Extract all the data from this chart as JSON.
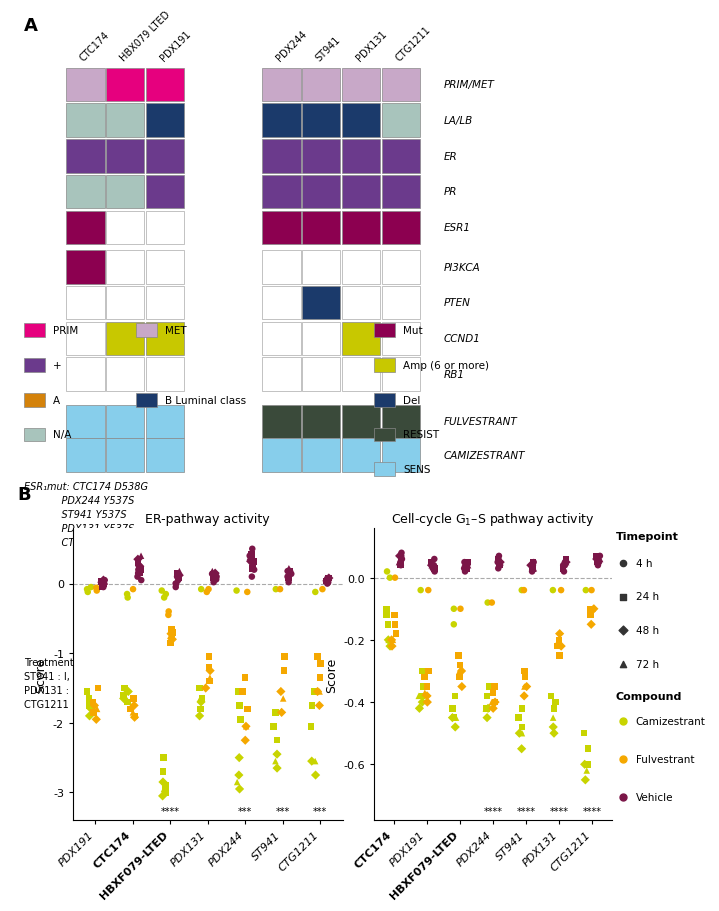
{
  "panel_A": {
    "group1_cols": [
      "CTC174",
      "HBX079 LTED",
      "PDX191"
    ],
    "group2_cols": [
      "PDX244",
      "ST941",
      "PDX131",
      "CTG1211"
    ],
    "rows": [
      "PRIM/MET",
      "LA/LB",
      "ER",
      "PR",
      "ESR1",
      "PI3KCA",
      "PTEN",
      "CCND1",
      "RB1",
      "FULVESTRANT",
      "CAMIZESTRANT"
    ],
    "grid": {
      "CTC174": {
        "PRIM/MET": "#C8A8C8",
        "LA/LB": "#A8C4BC",
        "ER": "#6B3A8C",
        "PR": "#A8C4BC",
        "ESR1": "#8C0050",
        "PI3KCA": "#8C0050",
        "PTEN": "#FFFFFF",
        "CCND1": "#FFFFFF",
        "RB1": "#FFFFFF",
        "FULVESTRANT": "#87CEEB",
        "CAMIZESTRANT": "#87CEEB"
      },
      "HBX079 LTED": {
        "PRIM/MET": "#E6007E",
        "LA/LB": "#A8C4BC",
        "ER": "#6B3A8C",
        "PR": "#A8C4BC",
        "ESR1": "#FFFFFF",
        "PI3KCA": "#FFFFFF",
        "PTEN": "#FFFFFF",
        "CCND1": "#C8C800",
        "RB1": "#FFFFFF",
        "FULVESTRANT": "#87CEEB",
        "CAMIZESTRANT": "#87CEEB"
      },
      "PDX191": {
        "PRIM/MET": "#E6007E",
        "LA/LB": "#1B3A6B",
        "ER": "#6B3A8C",
        "PR": "#6B3A8C",
        "ESR1": "#FFFFFF",
        "PI3KCA": "#FFFFFF",
        "PTEN": "#FFFFFF",
        "CCND1": "#C8C800",
        "RB1": "#FFFFFF",
        "FULVESTRANT": "#87CEEB",
        "CAMIZESTRANT": "#87CEEB"
      },
      "PDX244": {
        "PRIM/MET": "#C8A8C8",
        "LA/LB": "#1B3A6B",
        "ER": "#6B3A8C",
        "PR": "#6B3A8C",
        "ESR1": "#8C0050",
        "PI3KCA": "#FFFFFF",
        "PTEN": "#FFFFFF",
        "CCND1": "#FFFFFF",
        "RB1": "#FFFFFF",
        "FULVESTRANT": "#3A4A3A",
        "CAMIZESTRANT": "#87CEEB"
      },
      "ST941": {
        "PRIM/MET": "#C8A8C8",
        "LA/LB": "#1B3A6B",
        "ER": "#6B3A8C",
        "PR": "#6B3A8C",
        "ESR1": "#8C0050",
        "PI3KCA": "#FFFFFF",
        "PTEN": "#1B3A6B",
        "CCND1": "#FFFFFF",
        "RB1": "#FFFFFF",
        "FULVESTRANT": "#3A4A3A",
        "CAMIZESTRANT": "#87CEEB"
      },
      "PDX131": {
        "PRIM/MET": "#C8A8C8",
        "LA/LB": "#1B3A6B",
        "ER": "#6B3A8C",
        "PR": "#6B3A8C",
        "ESR1": "#8C0050",
        "PI3KCA": "#FFFFFF",
        "PTEN": "#FFFFFF",
        "CCND1": "#C8C800",
        "RB1": "#FFFFFF",
        "FULVESTRANT": "#3A4A3A",
        "CAMIZESTRANT": "#87CEEB"
      },
      "CTG1211": {
        "PRIM/MET": "#C8A8C8",
        "LA/LB": "#A8C4BC",
        "ER": "#6B3A8C",
        "PR": "#6B3A8C",
        "ESR1": "#8C0050",
        "PI3KCA": "#FFFFFF",
        "PTEN": "#FFFFFF",
        "CCND1": "#FFFFFF",
        "RB1": "#FFFFFF",
        "FULVESTRANT": "#3A4A3A",
        "CAMIZESTRANT": "#87CEEB"
      }
    }
  },
  "panel_B_left": {
    "title": "ER-pathway activity",
    "ylabel": "Score",
    "ylim": [
      -3.4,
      0.8
    ],
    "yticks": [
      -3,
      -2,
      -1,
      0
    ],
    "models": [
      "PDX191",
      "CTC174",
      "HBXF079-LTED",
      "PDX131",
      "PDX244",
      "ST941",
      "CTG1211"
    ],
    "bold_models": [
      "CTC174",
      "HBXF079-LTED"
    ],
    "significance": {
      "HBXF079-LTED": "****",
      "PDX244": "***",
      "ST941": "***",
      "CTG1211": "***"
    },
    "data": {
      "PDX191": {
        "Camizestrant": {
          "4h": [
            -0.05,
            -0.12,
            -0.08
          ],
          "24h": [
            -1.55,
            -1.65,
            -1.75
          ],
          "48h": [
            -1.8,
            -1.9
          ],
          "72h": [
            -1.7
          ]
        },
        "Fulvestrant": {
          "4h": [
            -0.06,
            -0.1
          ],
          "24h": [
            -1.5,
            -1.7,
            -1.85
          ],
          "48h": [
            -1.75,
            -1.95
          ],
          "72h": [
            -1.8
          ]
        },
        "Vehicle": {
          "4h": [
            0.0,
            0.05,
            -0.05,
            0.02
          ],
          "24h": [
            0.0,
            -0.05,
            0.03
          ],
          "48h": [
            0.02,
            0.05
          ],
          "72h": [
            0.03
          ]
        }
      },
      "CTC174": {
        "Camizestrant": {
          "4h": [
            -0.15,
            -0.2
          ],
          "24h": [
            -1.5,
            -1.6,
            -1.7
          ],
          "48h": [
            -1.55,
            -1.65
          ],
          "72h": [
            -1.5
          ]
        },
        "Fulvestrant": {
          "4h": [
            -0.08
          ],
          "24h": [
            -1.65,
            -1.8,
            -1.9
          ],
          "48h": [
            -1.75,
            -1.92
          ],
          "72h": [
            -1.85
          ]
        },
        "Vehicle": {
          "4h": [
            0.05,
            0.1,
            0.15,
            0.2,
            0.25
          ],
          "24h": [
            0.15,
            0.2,
            0.3
          ],
          "48h": [
            0.25,
            0.35
          ],
          "72h": [
            0.4
          ]
        }
      },
      "HBXF079-LTED": {
        "Camizestrant": {
          "4h": [
            -0.15,
            -0.2,
            -0.1
          ],
          "24h": [
            -2.5,
            -2.7,
            -2.9,
            -3.0
          ],
          "48h": [
            -2.85,
            -3.05
          ],
          "72h": [
            -2.95
          ]
        },
        "Fulvestrant": {
          "4h": [
            -0.4,
            -0.45
          ],
          "24h": [
            -0.65,
            -0.75,
            -0.85,
            -0.7
          ],
          "48h": [
            -0.72,
            -0.8
          ],
          "72h": [
            -0.75
          ]
        },
        "Vehicle": {
          "4h": [
            0.0,
            0.05,
            0.1,
            0.0,
            -0.05
          ],
          "24h": [
            0.08,
            0.15
          ],
          "48h": [
            0.12
          ],
          "72h": [
            0.18
          ]
        }
      },
      "PDX131": {
        "Camizestrant": {
          "4h": [
            -0.08
          ],
          "24h": [
            -1.5,
            -1.65,
            -1.8
          ],
          "48h": [
            -1.7,
            -1.9
          ],
          "72h": [
            -1.65
          ]
        },
        "Fulvestrant": {
          "4h": [
            -0.08,
            -0.12
          ],
          "24h": [
            -1.05,
            -1.2,
            -1.4
          ],
          "48h": [
            -1.25,
            -1.5
          ],
          "72h": [
            -1.35
          ]
        },
        "Vehicle": {
          "4h": [
            0.02,
            0.06,
            0.1,
            0.14
          ],
          "24h": [
            0.08,
            0.14
          ],
          "48h": [
            0.15
          ],
          "72h": [
            0.18
          ]
        }
      },
      "PDX244": {
        "Camizestrant": {
          "4h": [
            -0.1
          ],
          "24h": [
            -1.55,
            -1.75,
            -1.95
          ],
          "48h": [
            -2.5,
            -2.75,
            -2.95
          ],
          "72h": [
            -2.85
          ]
        },
        "Fulvestrant": {
          "4h": [
            -0.12
          ],
          "24h": [
            -1.35,
            -1.55,
            -1.8
          ],
          "48h": [
            -2.05,
            -2.25
          ],
          "72h": [
            -2.05
          ]
        },
        "Vehicle": {
          "4h": [
            0.1,
            0.2,
            0.3,
            0.4,
            0.5
          ],
          "24h": [
            0.22,
            0.32,
            0.42
          ],
          "48h": [
            0.32
          ],
          "72h": [
            0.38
          ]
        }
      },
      "ST941": {
        "Camizestrant": {
          "4h": [
            -0.08
          ],
          "24h": [
            -1.85,
            -2.05,
            -2.25
          ],
          "48h": [
            -2.45,
            -2.65
          ],
          "72h": [
            -2.55
          ]
        },
        "Fulvestrant": {
          "4h": [
            -0.08
          ],
          "24h": [
            -1.05,
            -1.25
          ],
          "48h": [
            -1.55,
            -1.85
          ],
          "72h": [
            -1.65
          ]
        },
        "Vehicle": {
          "4h": [
            0.02,
            0.1,
            0.18,
            0.14
          ],
          "24h": [
            0.08,
            0.18
          ],
          "48h": [
            0.18
          ],
          "72h": [
            0.22
          ]
        }
      },
      "CTG1211": {
        "Camizestrant": {
          "4h": [
            -0.12
          ],
          "24h": [
            -1.55,
            -1.75,
            -2.05
          ],
          "48h": [
            -2.55,
            -2.75
          ],
          "72h": [
            -2.55
          ]
        },
        "Fulvestrant": {
          "4h": [
            -0.08
          ],
          "24h": [
            -1.05,
            -1.15,
            -1.35
          ],
          "48h": [
            -1.55,
            -1.75
          ],
          "72h": [
            -1.55
          ]
        },
        "Vehicle": {
          "4h": [
            0.0,
            0.04,
            0.08,
            0.02
          ],
          "24h": [
            0.04,
            0.08
          ],
          "48h": [
            0.08
          ],
          "72h": [
            0.08
          ]
        }
      }
    }
  },
  "panel_B_right": {
    "title": "Cell-cycle G$_1$–S pathway activity",
    "ylabel": "Score",
    "ylim": [
      -0.78,
      0.16
    ],
    "yticks": [
      -0.6,
      -0.4,
      -0.2,
      0.0
    ],
    "models": [
      "CTC174",
      "PDX191",
      "HBXF079-LTED",
      "PDX244",
      "ST941",
      "PDX131",
      "CTG1211"
    ],
    "bold_models": [
      "CTC174",
      "HBXF079-LTED"
    ],
    "significance": {
      "PDX244": "****",
      "ST941": "****",
      "PDX131": "****",
      "CTG1211": "****"
    },
    "data": {
      "CTC174": {
        "Camizestrant": {
          "4h": [
            0.0,
            0.02
          ],
          "24h": [
            -0.1,
            -0.12,
            -0.15
          ],
          "48h": [
            -0.2,
            -0.22
          ],
          "72h": [
            -0.2
          ]
        },
        "Fulvestrant": {
          "4h": [
            0.0
          ],
          "24h": [
            -0.12,
            -0.15,
            -0.18
          ],
          "48h": [
            -0.2,
            -0.22
          ],
          "72h": [
            -0.2
          ]
        },
        "Vehicle": {
          "4h": [
            0.05,
            0.07,
            0.08,
            0.06,
            0.04
          ],
          "24h": [
            0.04,
            0.06
          ],
          "48h": [
            0.07
          ],
          "72h": [
            0.05
          ]
        }
      },
      "PDX191": {
        "Camizestrant": {
          "4h": [
            -0.04
          ],
          "24h": [
            -0.3,
            -0.35,
            -0.38
          ],
          "48h": [
            -0.4,
            -0.42
          ],
          "72h": [
            -0.38
          ]
        },
        "Fulvestrant": {
          "4h": [
            -0.04
          ],
          "24h": [
            -0.3,
            -0.32,
            -0.35
          ],
          "48h": [
            -0.38,
            -0.4
          ],
          "72h": [
            -0.37
          ]
        },
        "Vehicle": {
          "4h": [
            0.02,
            0.04,
            0.06,
            0.03
          ],
          "24h": [
            0.03,
            0.05
          ],
          "48h": [
            0.04
          ],
          "72h": [
            0.04
          ]
        }
      },
      "HBXF079-LTED": {
        "Camizestrant": {
          "4h": [
            -0.1,
            -0.15
          ],
          "24h": [
            -0.38,
            -0.42,
            -0.45
          ],
          "48h": [
            -0.45,
            -0.48
          ],
          "72h": [
            -0.45
          ]
        },
        "Fulvestrant": {
          "4h": [
            -0.1
          ],
          "24h": [
            -0.25,
            -0.28,
            -0.32
          ],
          "48h": [
            -0.3,
            -0.35
          ],
          "72h": [
            -0.3
          ]
        },
        "Vehicle": {
          "4h": [
            0.02,
            0.04,
            0.05,
            0.03
          ],
          "24h": [
            0.03,
            0.05
          ],
          "48h": [
            0.04
          ],
          "72h": [
            0.04
          ]
        }
      },
      "PDX244": {
        "Camizestrant": {
          "4h": [
            -0.08
          ],
          "24h": [
            -0.35,
            -0.38,
            -0.42
          ],
          "48h": [
            -0.42,
            -0.45
          ],
          "72h": [
            -0.42
          ]
        },
        "Fulvestrant": {
          "4h": [
            -0.08
          ],
          "24h": [
            -0.35,
            -0.37,
            -0.4
          ],
          "48h": [
            -0.4,
            -0.42
          ],
          "72h": [
            -0.4
          ]
        },
        "Vehicle": {
          "4h": [
            0.04,
            0.06,
            0.07,
            0.05,
            0.03
          ],
          "24h": [
            0.04,
            0.06
          ],
          "48h": [
            0.05
          ],
          "72h": [
            0.05
          ]
        }
      },
      "ST941": {
        "Camizestrant": {
          "4h": [
            -0.04
          ],
          "24h": [
            -0.42,
            -0.45,
            -0.48
          ],
          "48h": [
            -0.5,
            -0.55
          ],
          "72h": [
            -0.5
          ]
        },
        "Fulvestrant": {
          "4h": [
            -0.04
          ],
          "24h": [
            -0.3,
            -0.32
          ],
          "48h": [
            -0.35,
            -0.38
          ],
          "72h": [
            -0.35
          ]
        },
        "Vehicle": {
          "4h": [
            0.02,
            0.04,
            0.05,
            0.03
          ],
          "24h": [
            0.03,
            0.05
          ],
          "48h": [
            0.04
          ],
          "72h": [
            0.03
          ]
        }
      },
      "PDX131": {
        "Camizestrant": {
          "4h": [
            -0.04
          ],
          "24h": [
            -0.38,
            -0.4,
            -0.42
          ],
          "48h": [
            -0.48,
            -0.5
          ],
          "72h": [
            -0.45
          ]
        },
        "Fulvestrant": {
          "4h": [
            -0.04
          ],
          "24h": [
            -0.2,
            -0.22,
            -0.25
          ],
          "48h": [
            -0.18,
            -0.22
          ],
          "72h": [
            -0.2
          ]
        },
        "Vehicle": {
          "4h": [
            0.02,
            0.04,
            0.05,
            0.04
          ],
          "24h": [
            0.03,
            0.06
          ],
          "48h": [
            0.05
          ],
          "72h": [
            0.05
          ]
        }
      },
      "CTG1211": {
        "Camizestrant": {
          "4h": [
            -0.04
          ],
          "24h": [
            -0.5,
            -0.55,
            -0.6
          ],
          "48h": [
            -0.6,
            -0.65
          ],
          "72h": [
            -0.62
          ]
        },
        "Fulvestrant": {
          "4h": [
            -0.04
          ],
          "24h": [
            -0.1,
            -0.12
          ],
          "48h": [
            -0.1,
            -0.15
          ],
          "72h": [
            -0.1
          ]
        },
        "Vehicle": {
          "4h": [
            0.04,
            0.06,
            0.07,
            0.05
          ],
          "24h": [
            0.05,
            0.07
          ],
          "48h": [
            0.06
          ],
          "72h": [
            0.06
          ]
        }
      }
    }
  },
  "compound_colors": {
    "Camizestrant": "#C8D400",
    "Fulvestrant": "#F5A800",
    "Vehicle": "#7B1648"
  },
  "timepoint_markers": {
    "4h": "o",
    "24h": "s",
    "48h": "D",
    "72h": "^"
  }
}
